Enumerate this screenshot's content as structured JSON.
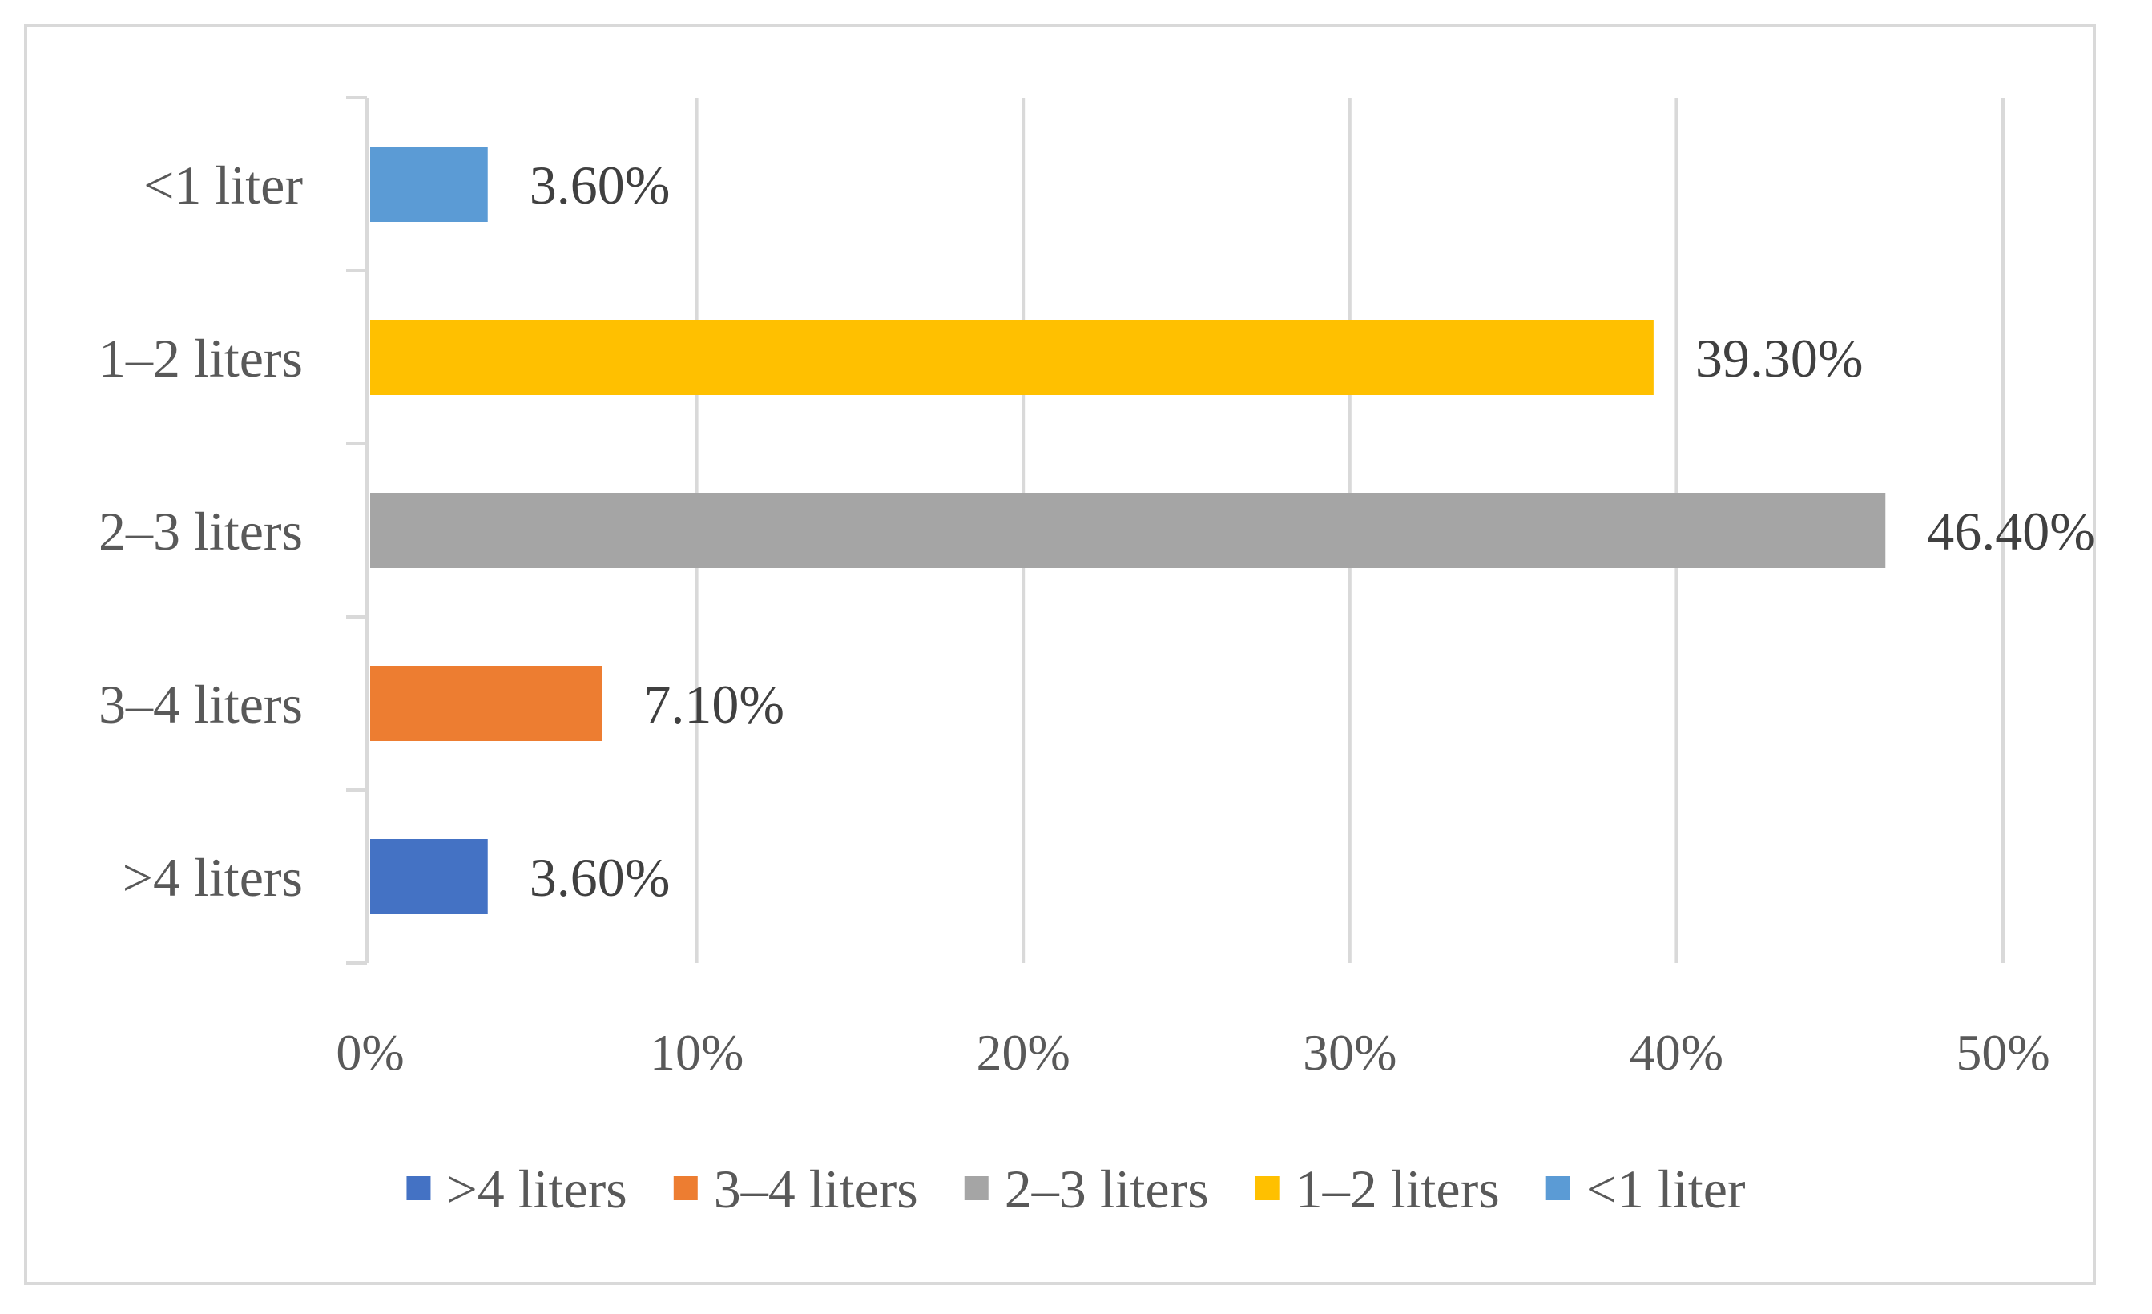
{
  "chart_data": {
    "type": "bar",
    "orientation": "horizontal",
    "title": "",
    "xlabel": "",
    "ylabel": "",
    "xlim": [
      0,
      50
    ],
    "x_ticks": [
      "0%",
      "10%",
      "20%",
      "30%",
      "40%",
      "50%"
    ],
    "grid": "vertical",
    "legend_position": "bottom",
    "categories": [
      "<1 liter",
      "1–2 liters",
      "2–3 liters",
      "3–4 liters",
      ">4 liters"
    ],
    "values": [
      3.6,
      39.3,
      46.4,
      7.1,
      3.6
    ],
    "data_labels": [
      "3.60%",
      "39.30%",
      "46.40%",
      "7.10%",
      "3.60%"
    ],
    "colors": [
      "#5b9bd5",
      "#ffc000",
      "#a5a5a5",
      "#ed7d31",
      "#4472c4"
    ],
    "legend": [
      {
        "label": ">4 liters",
        "color": "#4472c4"
      },
      {
        "label": "3–4 liters",
        "color": "#ed7d31"
      },
      {
        "label": "2–3 liters",
        "color": "#a5a5a5"
      },
      {
        "label": "1–2 liters",
        "color": "#ffc000"
      },
      {
        "label": "<1 liter",
        "color": "#5b9bd5"
      }
    ],
    "gridline_color": "#d9d9d9"
  }
}
